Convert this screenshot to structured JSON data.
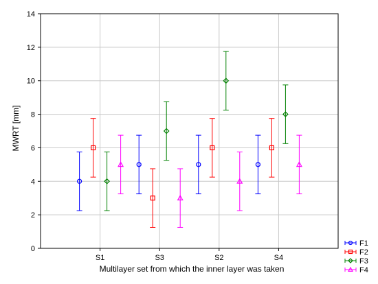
{
  "chart_data": {
    "type": "scatter",
    "subtype": "mean-with-error-bars",
    "title": "",
    "xlabel": "Multilayer set from which the inner layer was taken",
    "ylabel": "MWRT  [mm]",
    "categories": [
      "S1",
      "S3",
      "S2",
      "S4"
    ],
    "ylim": [
      0,
      14
    ],
    "yticks": [
      "0",
      "2",
      "4",
      "6",
      "8",
      "10",
      "12",
      "14"
    ],
    "grid": true,
    "legend_position": "bottom-right",
    "series": [
      {
        "name": "F1",
        "color": "#0000ff",
        "marker": "circle",
        "values": [
          4,
          5,
          5,
          5
        ],
        "lower": [
          2.25,
          3.25,
          3.25,
          3.25
        ],
        "upper": [
          5.75,
          6.75,
          6.75,
          6.75
        ]
      },
      {
        "name": "F2",
        "color": "#ff0000",
        "marker": "square",
        "values": [
          6,
          3,
          6,
          6
        ],
        "lower": [
          4.25,
          1.25,
          4.25,
          4.25
        ],
        "upper": [
          7.75,
          4.75,
          7.75,
          7.75
        ]
      },
      {
        "name": "F3",
        "color": "#008000",
        "marker": "diamond",
        "values": [
          4,
          7,
          10,
          8
        ],
        "lower": [
          2.25,
          5.25,
          8.25,
          6.25
        ],
        "upper": [
          5.75,
          8.75,
          11.75,
          9.75
        ]
      },
      {
        "name": "F4",
        "color": "#ff00ff",
        "marker": "triangle",
        "values": [
          5,
          3,
          4,
          5
        ],
        "lower": [
          3.25,
          1.25,
          2.25,
          3.25
        ],
        "upper": [
          6.75,
          4.75,
          5.75,
          6.75
        ]
      }
    ]
  }
}
